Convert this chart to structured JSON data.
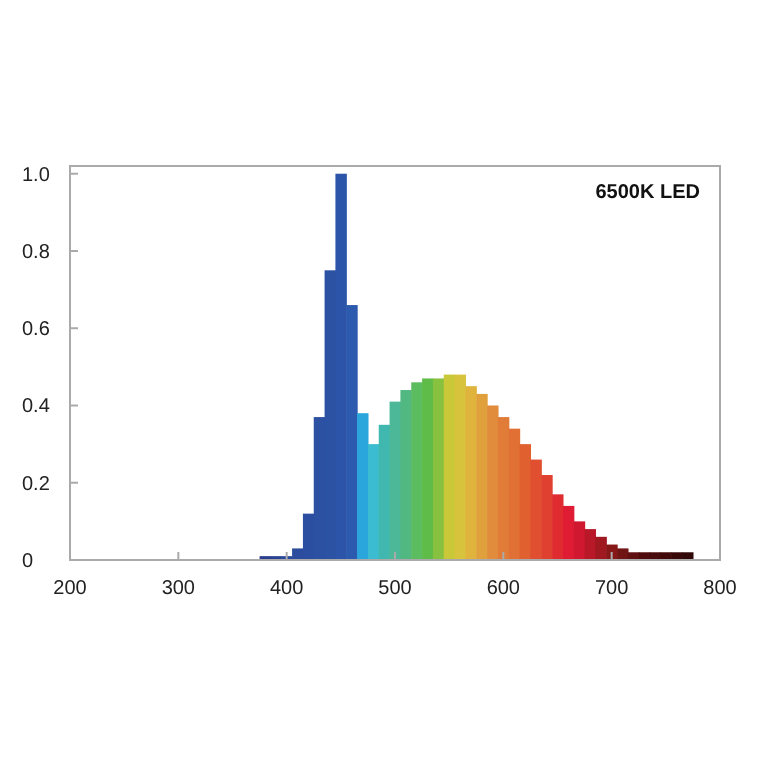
{
  "chart_data": {
    "type": "bar",
    "annotations": [
      "6500K LED"
    ],
    "x": [
      380,
      390,
      400,
      410,
      420,
      430,
      440,
      450,
      460,
      470,
      480,
      490,
      500,
      510,
      520,
      530,
      540,
      550,
      560,
      570,
      580,
      590,
      600,
      610,
      620,
      630,
      640,
      650,
      660,
      670,
      680,
      690,
      700,
      710,
      720,
      730,
      740,
      750,
      760,
      770
    ],
    "values": [
      0.01,
      0.01,
      0.01,
      0.03,
      0.12,
      0.37,
      0.75,
      1.0,
      0.66,
      0.38,
      0.3,
      0.35,
      0.41,
      0.44,
      0.46,
      0.47,
      0.47,
      0.48,
      0.48,
      0.45,
      0.43,
      0.4,
      0.37,
      0.34,
      0.3,
      0.26,
      0.22,
      0.17,
      0.14,
      0.1,
      0.08,
      0.06,
      0.04,
      0.03,
      0.02,
      0.02,
      0.02,
      0.02,
      0.02,
      0.02
    ],
    "colors": [
      "#2a3f8c",
      "#2a4494",
      "#2c4a9c",
      "#2c4c9e",
      "#2c4ea0",
      "#2c50a2",
      "#2c52a4",
      "#2c54a8",
      "#2c5aae",
      "#2aa6dc",
      "#3bbcd0",
      "#40b8b0",
      "#4cb898",
      "#50b880",
      "#5cbc60",
      "#60bc48",
      "#88c040",
      "#c8c838",
      "#d8c43c",
      "#e0b43c",
      "#e0a03c",
      "#e08c3c",
      "#e07c38",
      "#e07034",
      "#e06030",
      "#e05030",
      "#e04030",
      "#e02c30",
      "#e01c34",
      "#d01830",
      "#b81828",
      "#a01820",
      "#881818",
      "#701414",
      "#601010",
      "#500c0c",
      "#480c0c",
      "#400808",
      "#380808",
      "#300808"
    ],
    "xlim": [
      200,
      800
    ],
    "xticks": [
      200,
      300,
      400,
      500,
      600,
      700,
      800
    ],
    "ylim": [
      0,
      1.02
    ],
    "yticks": [
      0,
      {
        "value": 0.2,
        "label": "0.2"
      },
      {
        "value": 0.4,
        "label": "0.4"
      },
      {
        "value": 0.6,
        "label": "0.6"
      },
      {
        "value": 0.8,
        "label": "0.8"
      },
      {
        "value": 1,
        "label": "1.0"
      }
    ],
    "grid": false
  }
}
